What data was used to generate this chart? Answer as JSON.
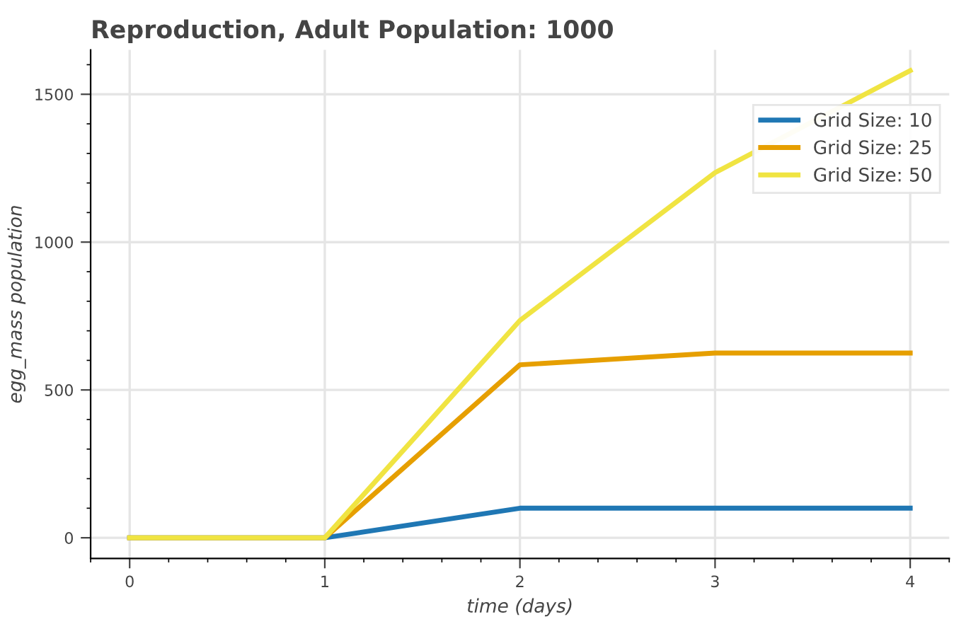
{
  "chart_data": {
    "type": "line",
    "title": "Reproduction, Adult Population: 1000",
    "xlabel": "time (days)",
    "ylabel": "egg_mass population",
    "x": [
      0,
      1,
      2,
      3,
      4
    ],
    "series": [
      {
        "name": "Grid Size: 10",
        "color": "#1f77b4",
        "values": [
          0,
          0,
          100,
          100,
          100
        ]
      },
      {
        "name": "Grid Size: 25",
        "color": "#e69f00",
        "values": [
          0,
          0,
          585,
          625,
          625
        ]
      },
      {
        "name": "Grid Size: 50",
        "color": "#f0e442",
        "values": [
          0,
          0,
          735,
          1235,
          1580
        ]
      }
    ],
    "xlim": [
      -0.2,
      4.2
    ],
    "ylim": [
      -70,
      1650
    ],
    "xticks": [
      0,
      1,
      2,
      3,
      4
    ],
    "yticks": [
      0,
      500,
      1000,
      1500
    ],
    "grid": true,
    "legend": "top right",
    "marker": "none",
    "line_style": "solid"
  }
}
